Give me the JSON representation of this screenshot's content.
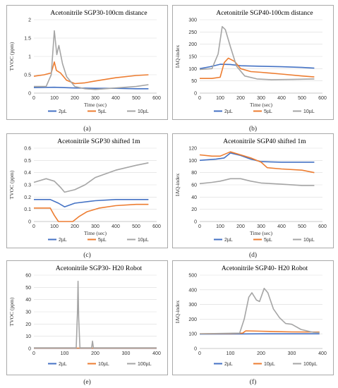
{
  "panels": [
    {
      "id": "a",
      "caption": "(a)",
      "chart_data": {
        "type": "line",
        "title": "Acetonitrile SGP30-100cm distance",
        "xlabel": "Time (sec)",
        "ylabel": "TVOC (ppm)",
        "xlim": [
          0,
          600
        ],
        "xticks": [
          0,
          100,
          200,
          300,
          400,
          500,
          600
        ],
        "ylim": [
          0,
          2
        ],
        "yticks": [
          0,
          0.5,
          1,
          1.5,
          2
        ],
        "grid": "horizontal",
        "legend": "bottom",
        "series": [
          {
            "name": "2µL",
            "color": "#4472c4",
            "points": [
              [
                0,
                0.15
              ],
              [
                100,
                0.16
              ],
              [
                150,
                0.15
              ],
              [
                200,
                0.14
              ],
              [
                300,
                0.13
              ],
              [
                400,
                0.13
              ],
              [
                500,
                0.12
              ],
              [
                560,
                0.12
              ]
            ]
          },
          {
            "name": "5µL",
            "color": "#ed7d31",
            "points": [
              [
                0,
                0.46
              ],
              [
                50,
                0.5
              ],
              [
                85,
                0.55
              ],
              [
                100,
                0.85
              ],
              [
                110,
                0.62
              ],
              [
                130,
                0.55
              ],
              [
                160,
                0.35
              ],
              [
                200,
                0.26
              ],
              [
                250,
                0.28
              ],
              [
                300,
                0.33
              ],
              [
                400,
                0.42
              ],
              [
                500,
                0.48
              ],
              [
                560,
                0.5
              ]
            ]
          },
          {
            "name": "10µL",
            "color": "#a5a5a5",
            "points": [
              [
                0,
                0.18
              ],
              [
                60,
                0.18
              ],
              [
                85,
                0.5
              ],
              [
                100,
                1.7
              ],
              [
                112,
                1.05
              ],
              [
                122,
                1.3
              ],
              [
                140,
                0.8
              ],
              [
                160,
                0.45
              ],
              [
                200,
                0.18
              ],
              [
                250,
                0.12
              ],
              [
                300,
                0.1
              ],
              [
                400,
                0.14
              ],
              [
                500,
                0.18
              ],
              [
                560,
                0.23
              ]
            ]
          }
        ]
      }
    },
    {
      "id": "b",
      "caption": "(b)",
      "chart_data": {
        "type": "line",
        "title": "Acetonitrile SGP40-100cm distance",
        "xlabel": "Time (sec)",
        "ylabel": "IAQ-index",
        "xlim": [
          0,
          600
        ],
        "xticks": [
          0,
          100,
          200,
          300,
          400,
          500,
          600
        ],
        "ylim": [
          0,
          300
        ],
        "yticks": [
          0,
          50,
          100,
          150,
          200,
          250,
          300
        ],
        "grid": "horizontal",
        "legend": "bottom",
        "series": [
          {
            "name": "2µL",
            "color": "#4472c4",
            "points": [
              [
                0,
                100
              ],
              [
                50,
                108
              ],
              [
                100,
                118
              ],
              [
                150,
                117
              ],
              [
                200,
                112
              ],
              [
                300,
                110
              ],
              [
                400,
                108
              ],
              [
                500,
                105
              ],
              [
                560,
                102
              ]
            ]
          },
          {
            "name": "5µL",
            "color": "#ed7d31",
            "points": [
              [
                0,
                60
              ],
              [
                60,
                60
              ],
              [
                100,
                65
              ],
              [
                120,
                125
              ],
              [
                140,
                143
              ],
              [
                170,
                130
              ],
              [
                200,
                100
              ],
              [
                250,
                88
              ],
              [
                300,
                85
              ],
              [
                400,
                78
              ],
              [
                500,
                70
              ],
              [
                560,
                66
              ]
            ]
          },
          {
            "name": "10µL",
            "color": "#a5a5a5",
            "points": [
              [
                0,
                97
              ],
              [
                60,
                100
              ],
              [
                90,
                160
              ],
              [
                110,
                272
              ],
              [
                125,
                260
              ],
              [
                150,
                190
              ],
              [
                180,
                110
              ],
              [
                220,
                70
              ],
              [
                280,
                58
              ],
              [
                350,
                55
              ],
              [
                450,
                56
              ],
              [
                560,
                58
              ]
            ]
          }
        ]
      }
    },
    {
      "id": "c",
      "caption": "(c)",
      "chart_data": {
        "type": "line",
        "title": "Acetonitrile SGP30 shifted 1m",
        "xlabel": "Time (sec)",
        "ylabel": "TVOC (ppm)",
        "xlim": [
          0,
          600
        ],
        "xticks": [
          0,
          100,
          200,
          300,
          400,
          500,
          600
        ],
        "ylim": [
          0,
          0.6
        ],
        "yticks": [
          0,
          0.1,
          0.2,
          0.3,
          0.4,
          0.5,
          0.6
        ],
        "grid": "horizontal",
        "legend": "bottom",
        "series": [
          {
            "name": "2µL",
            "color": "#4472c4",
            "points": [
              [
                0,
                0.18
              ],
              [
                80,
                0.18
              ],
              [
                120,
                0.15
              ],
              [
                150,
                0.12
              ],
              [
                200,
                0.15
              ],
              [
                300,
                0.17
              ],
              [
                400,
                0.18
              ],
              [
                500,
                0.18
              ],
              [
                560,
                0.18
              ]
            ]
          },
          {
            "name": "5µL",
            "color": "#ed7d31",
            "points": [
              [
                0,
                0.11
              ],
              [
                80,
                0.11
              ],
              [
                100,
                0.05
              ],
              [
                120,
                0
              ],
              [
                190,
                0
              ],
              [
                220,
                0.04
              ],
              [
                260,
                0.08
              ],
              [
                320,
                0.11
              ],
              [
                400,
                0.13
              ],
              [
                500,
                0.14
              ],
              [
                560,
                0.14
              ]
            ]
          },
          {
            "name": "10µL",
            "color": "#a5a5a5",
            "points": [
              [
                0,
                0.32
              ],
              [
                60,
                0.35
              ],
              [
                100,
                0.33
              ],
              [
                130,
                0.28
              ],
              [
                150,
                0.24
              ],
              [
                200,
                0.26
              ],
              [
                250,
                0.3
              ],
              [
                300,
                0.36
              ],
              [
                400,
                0.42
              ],
              [
                500,
                0.46
              ],
              [
                560,
                0.48
              ]
            ]
          }
        ]
      }
    },
    {
      "id": "d",
      "caption": "(d)",
      "chart_data": {
        "type": "line",
        "title": "Acetonitrile SGP40 shifted 1m",
        "xlabel": "Time (sec)",
        "ylabel": "IAQ-index",
        "xlim": [
          0,
          600
        ],
        "xticks": [
          0,
          100,
          200,
          300,
          400,
          500,
          600
        ],
        "ylim": [
          0,
          120
        ],
        "yticks": [
          0,
          20,
          40,
          60,
          80,
          100,
          120
        ],
        "grid": "horizontal",
        "legend": "bottom",
        "series": [
          {
            "name": "2µL",
            "color": "#4472c4",
            "points": [
              [
                0,
                100
              ],
              [
                80,
                102
              ],
              [
                120,
                104
              ],
              [
                150,
                112
              ],
              [
                200,
                108
              ],
              [
                250,
                102
              ],
              [
                300,
                98
              ],
              [
                400,
                97
              ],
              [
                500,
                97
              ],
              [
                560,
                97
              ]
            ]
          },
          {
            "name": "5µL",
            "color": "#ed7d31",
            "points": [
              [
                0,
                109
              ],
              [
                60,
                107
              ],
              [
                100,
                107
              ],
              [
                150,
                114
              ],
              [
                200,
                109
              ],
              [
                250,
                104
              ],
              [
                300,
                97
              ],
              [
                330,
                88
              ],
              [
                400,
                86
              ],
              [
                500,
                84
              ],
              [
                560,
                80
              ]
            ]
          },
          {
            "name": "10µL",
            "color": "#a5a5a5",
            "points": [
              [
                0,
                62
              ],
              [
                60,
                64
              ],
              [
                100,
                66
              ],
              [
                150,
                70
              ],
              [
                200,
                70
              ],
              [
                250,
                66
              ],
              [
                300,
                63
              ],
              [
                400,
                61
              ],
              [
                500,
                59
              ],
              [
                560,
                59
              ]
            ]
          }
        ]
      }
    },
    {
      "id": "e",
      "caption": "(e)",
      "chart_data": {
        "type": "line",
        "title": "Acetonitrile SGP30- H20 Robot",
        "xlabel": "",
        "ylabel": "TVOC (ppm)",
        "xlim": [
          0,
          400
        ],
        "xticks": [
          0,
          100,
          200,
          300,
          400
        ],
        "ylim": [
          0,
          60
        ],
        "yticks": [
          0,
          10,
          20,
          30,
          40,
          50,
          60
        ],
        "grid": "horizontal",
        "legend": "bottom",
        "series": [
          {
            "name": "2µL",
            "color": "#4472c4",
            "points": [
              [
                0,
                0.2
              ],
              [
                400,
                0.2
              ]
            ]
          },
          {
            "name": "10µL",
            "color": "#ed7d31",
            "points": [
              [
                0,
                0.3
              ],
              [
                400,
                0.3
              ]
            ]
          },
          {
            "name": "100µL",
            "color": "#a5a5a5",
            "points": [
              [
                0,
                0.5
              ],
              [
                138,
                0.5
              ],
              [
                142,
                30
              ],
              [
                144,
                55
              ],
              [
                146,
                25
              ],
              [
                150,
                0.5
              ],
              [
                188,
                0.5
              ],
              [
                191,
                6
              ],
              [
                194,
                0.5
              ],
              [
                400,
                0.5
              ]
            ]
          }
        ]
      }
    },
    {
      "id": "f",
      "caption": "(f)",
      "chart_data": {
        "type": "line",
        "title": "Acetonitrile SGP40- H20 Robot",
        "xlabel": "",
        "ylabel": "IAQ-index",
        "xlim": [
          0,
          400
        ],
        "xticks": [
          0,
          100,
          200,
          300,
          400
        ],
        "ylim": [
          0,
          500
        ],
        "yticks": [
          0,
          100,
          200,
          300,
          400,
          500
        ],
        "grid": "horizontal",
        "legend": "bottom",
        "series": [
          {
            "name": "2µL",
            "color": "#4472c4",
            "points": [
              [
                0,
                98
              ],
              [
                100,
                99
              ],
              [
                200,
                100
              ],
              [
                300,
                100
              ],
              [
                390,
                100
              ]
            ]
          },
          {
            "name": "10µL",
            "color": "#ed7d31",
            "points": [
              [
                0,
                100
              ],
              [
                100,
                102
              ],
              [
                140,
                105
              ],
              [
                150,
                120
              ],
              [
                200,
                118
              ],
              [
                250,
                115
              ],
              [
                300,
                113
              ],
              [
                390,
                112
              ]
            ]
          },
          {
            "name": "100µL",
            "color": "#a5a5a5",
            "points": [
              [
                0,
                100
              ],
              [
                130,
                105
              ],
              [
                145,
                200
              ],
              [
                160,
                350
              ],
              [
                170,
                380
              ],
              [
                185,
                330
              ],
              [
                195,
                320
              ],
              [
                210,
                410
              ],
              [
                222,
                380
              ],
              [
                240,
                270
              ],
              [
                260,
                210
              ],
              [
                280,
                170
              ],
              [
                300,
                165
              ],
              [
                330,
                130
              ],
              [
                370,
                110
              ],
              [
                390,
                108
              ]
            ]
          }
        ]
      }
    }
  ]
}
